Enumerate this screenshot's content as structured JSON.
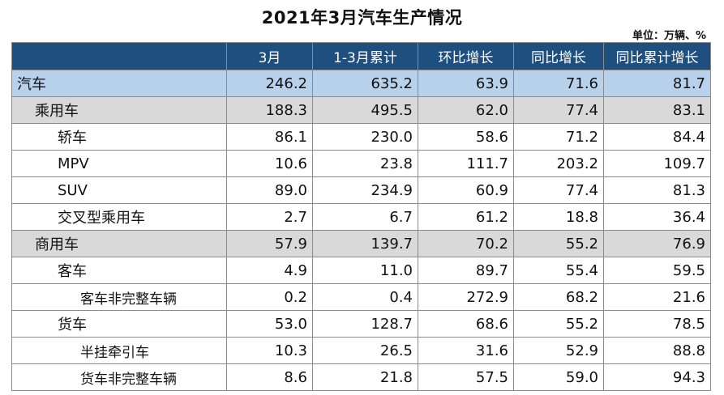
{
  "title": "2021年3月汽车生产情况",
  "unit": "单位：万辆、%",
  "columns": [
    "",
    "3月",
    "1-3月累计",
    "环比增长",
    "同比增长",
    "同比累计增长"
  ],
  "rows": [
    {
      "name": "汽车",
      "level": 0,
      "cells": [
        "246.2",
        "635.2",
        "63.9",
        "71.6",
        "81.7"
      ]
    },
    {
      "name": "乘用车",
      "level": 1,
      "cells": [
        "188.3",
        "495.5",
        "62.0",
        "77.4",
        "83.1"
      ]
    },
    {
      "name": "轿车",
      "level": 2,
      "cells": [
        "86.1",
        "230.0",
        "58.6",
        "71.2",
        "84.4"
      ]
    },
    {
      "name": "MPV",
      "level": 2,
      "cells": [
        "10.6",
        "23.8",
        "111.7",
        "203.2",
        "109.7"
      ]
    },
    {
      "name": "SUV",
      "level": 2,
      "cells": [
        "89.0",
        "234.9",
        "60.9",
        "77.4",
        "81.3"
      ]
    },
    {
      "name": "交叉型乘用车",
      "level": 2,
      "cells": [
        "2.7",
        "6.7",
        "61.2",
        "18.8",
        "36.4"
      ]
    },
    {
      "name": "商用车",
      "level": 1,
      "cells": [
        "57.9",
        "139.7",
        "70.2",
        "55.2",
        "76.9"
      ]
    },
    {
      "name": "客车",
      "level": 2,
      "cells": [
        "4.9",
        "11.0",
        "89.7",
        "55.4",
        "59.5"
      ]
    },
    {
      "name": "客车非完整车辆",
      "level": 3,
      "cells": [
        "0.2",
        "0.4",
        "272.9",
        "68.2",
        "21.6"
      ]
    },
    {
      "name": "货车",
      "level": 2,
      "cells": [
        "53.0",
        "128.7",
        "68.6",
        "55.2",
        "78.5"
      ]
    },
    {
      "name": "半挂牵引车",
      "level": 3,
      "cells": [
        "10.3",
        "26.5",
        "31.6",
        "52.9",
        "88.8"
      ]
    },
    {
      "name": "货车非完整车辆",
      "level": 3,
      "cells": [
        "8.6",
        "21.8",
        "57.5",
        "59.0",
        "94.3"
      ]
    }
  ]
}
